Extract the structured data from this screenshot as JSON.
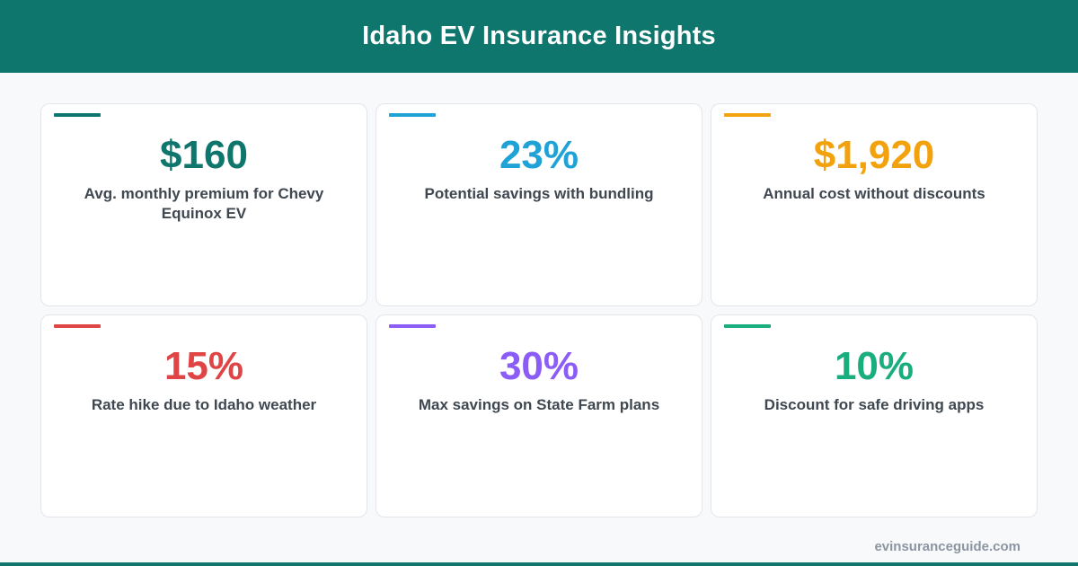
{
  "header": {
    "title": "Idaho EV Insurance Insights"
  },
  "colors": {
    "brand": "#0f766e",
    "card1": "#0f766e",
    "card2": "#1fa2d6",
    "card3": "#f2a20d",
    "card4": "#e04545",
    "card5": "#8b5cf6",
    "card6": "#1aae7e"
  },
  "cards": [
    {
      "value": "$160",
      "label": "Avg. monthly premium for Chevy Equinox EV"
    },
    {
      "value": "23%",
      "label": "Potential savings with bundling"
    },
    {
      "value": "$1,920",
      "label": "Annual cost without discounts"
    },
    {
      "value": "15%",
      "label": "Rate hike due to Idaho weather"
    },
    {
      "value": "30%",
      "label": "Max savings on State Farm plans"
    },
    {
      "value": "10%",
      "label": "Discount for safe driving apps"
    }
  ],
  "footer": {
    "domain": "evinsuranceguide.com"
  }
}
